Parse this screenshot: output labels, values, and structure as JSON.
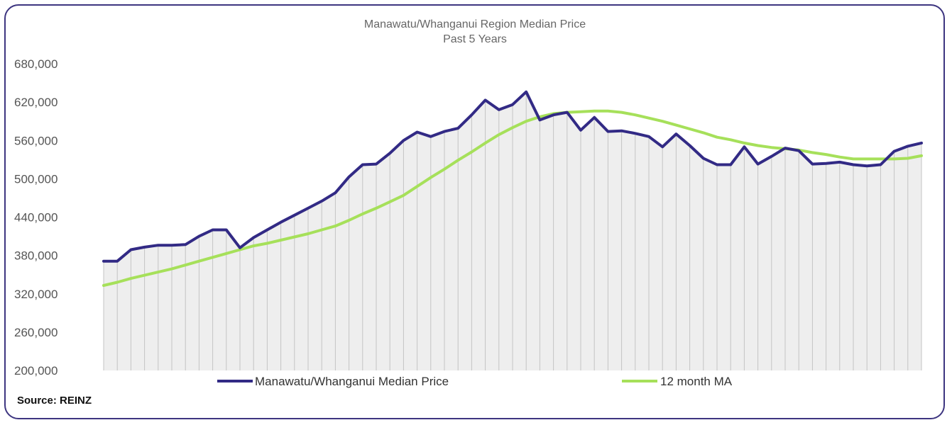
{
  "source": "Source: REINZ",
  "colors": {
    "frame": "#3d3580",
    "series_main": "#322a85",
    "series_ma": "#a6e05a",
    "fill": "#eeeeee",
    "gridline": "#c4c4c4",
    "text": "#555555"
  },
  "chart_data": {
    "type": "line",
    "title": "Manawatu/Whanganui Region Median Price",
    "subtitle": "Past 5 Years",
    "xlabel": "",
    "ylabel": "",
    "ylim": [
      200000,
      680000
    ],
    "y_ticks": [
      "200,000",
      "260,000",
      "320,000",
      "380,000",
      "440,000",
      "500,000",
      "560,000",
      "620,000",
      "680,000"
    ],
    "y_tick_values": [
      200000,
      260000,
      320000,
      380000,
      440000,
      500000,
      560000,
      620000,
      680000
    ],
    "grid": "vertical lines per month",
    "legend_position": "bottom",
    "series": [
      {
        "name": "Manawatu/Whanganui Median Price",
        "color": "#322a85",
        "values": [
          371000,
          371000,
          389000,
          393000,
          396000,
          396000,
          397000,
          410000,
          420000,
          420000,
          392000,
          408000,
          420000,
          432000,
          443000,
          454000,
          465000,
          478000,
          503000,
          522000,
          523000,
          540000,
          560000,
          573000,
          566000,
          574000,
          579000,
          600000,
          623000,
          608000,
          616000,
          636000,
          592000,
          600000,
          604000,
          576000,
          596000,
          574000,
          575000,
          571000,
          566000,
          550000,
          570000,
          552000,
          532000,
          522000,
          522000,
          550000,
          523000,
          535000,
          548000,
          544000,
          523000,
          524000,
          526000,
          522000,
          520000,
          522000,
          543000,
          551000,
          556000
        ]
      },
      {
        "name": "12 month MA",
        "color": "#a6e05a",
        "values": [
          333000,
          338000,
          344000,
          349000,
          354000,
          359000,
          365000,
          371000,
          377000,
          383000,
          389000,
          395000,
          399000,
          404000,
          409000,
          414000,
          420000,
          426000,
          435000,
          445000,
          454000,
          464000,
          474000,
          488000,
          502000,
          515000,
          529000,
          542000,
          556000,
          569000,
          580000,
          590000,
          597000,
          602000,
          604000,
          605000,
          606000,
          606000,
          604000,
          600000,
          595000,
          590000,
          584000,
          578000,
          572000,
          565000,
          561000,
          556000,
          552000,
          549000,
          547000,
          545000,
          541000,
          538000,
          534000,
          531000,
          531000,
          531000,
          531000,
          532000,
          536000
        ]
      }
    ]
  }
}
